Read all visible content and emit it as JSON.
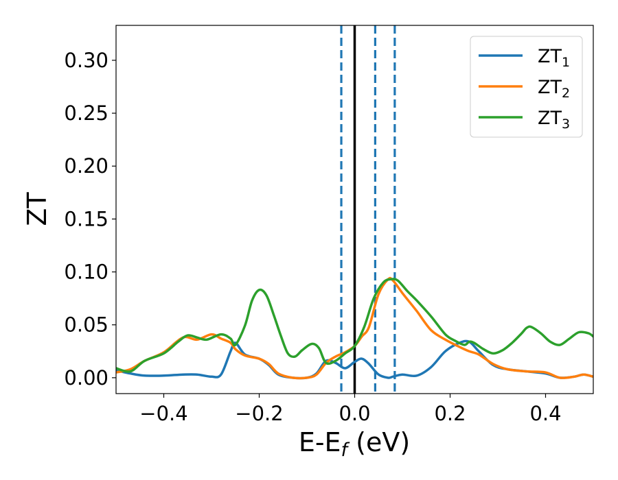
{
  "chart_data": {
    "type": "line",
    "xlabel": "E-E",
    "xlabel_sub": "f",
    "xlabel_unit": " (eV)",
    "ylabel": "ZT",
    "xlim": [
      -0.5,
      0.5
    ],
    "ylim": [
      -0.015,
      0.333
    ],
    "xticks": [
      -0.4,
      -0.2,
      0.0,
      0.2,
      0.4
    ],
    "xtick_labels": [
      "−0.4",
      "−0.2",
      "0.0",
      "0.2",
      "0.4"
    ],
    "yticks": [
      0.0,
      0.05,
      0.1,
      0.15,
      0.2,
      0.25,
      0.3
    ],
    "ytick_labels": [
      "0.00",
      "0.05",
      "0.10",
      "0.15",
      "0.20",
      "0.25",
      "0.30"
    ],
    "grid": false,
    "legend_position": "top-right",
    "series": [
      {
        "name": "ZT",
        "name_sub": "1",
        "color": "#1f77b4",
        "x": [
          -0.5,
          -0.47,
          -0.44,
          -0.4,
          -0.36,
          -0.33,
          -0.3,
          -0.28,
          -0.26,
          -0.25,
          -0.23,
          -0.2,
          -0.18,
          -0.16,
          -0.13,
          -0.1,
          -0.08,
          -0.06,
          -0.04,
          -0.02,
          0.0,
          0.015,
          0.03,
          0.05,
          0.07,
          0.08,
          0.1,
          0.13,
          0.16,
          0.19,
          0.22,
          0.24,
          0.26,
          0.29,
          0.32,
          0.36,
          0.4,
          0.43,
          0.46,
          0.48,
          0.5
        ],
        "y": [
          0.007,
          0.004,
          0.002,
          0.002,
          0.003,
          0.003,
          0.001,
          0.003,
          0.025,
          0.033,
          0.022,
          0.018,
          0.012,
          0.003,
          0.0,
          0.0,
          0.004,
          0.016,
          0.014,
          0.009,
          0.015,
          0.018,
          0.013,
          0.003,
          0.0,
          0.001,
          0.003,
          0.002,
          0.01,
          0.025,
          0.033,
          0.034,
          0.025,
          0.012,
          0.008,
          0.006,
          0.004,
          0.0,
          0.001,
          0.003,
          0.001
        ]
      },
      {
        "name": "ZT",
        "name_sub": "2",
        "color": "#ff7f0e",
        "x": [
          -0.5,
          -0.47,
          -0.44,
          -0.4,
          -0.36,
          -0.33,
          -0.3,
          -0.28,
          -0.26,
          -0.25,
          -0.23,
          -0.2,
          -0.18,
          -0.16,
          -0.13,
          -0.1,
          -0.08,
          -0.06,
          -0.04,
          -0.02,
          0.0,
          0.015,
          0.03,
          0.05,
          0.07,
          0.08,
          0.1,
          0.13,
          0.16,
          0.19,
          0.22,
          0.24,
          0.26,
          0.29,
          0.32,
          0.36,
          0.4,
          0.43,
          0.46,
          0.48,
          0.5
        ],
        "y": [
          0.005,
          0.008,
          0.016,
          0.024,
          0.038,
          0.036,
          0.041,
          0.037,
          0.033,
          0.027,
          0.021,
          0.018,
          0.013,
          0.004,
          0.0,
          0.0,
          0.003,
          0.014,
          0.02,
          0.024,
          0.03,
          0.039,
          0.048,
          0.079,
          0.093,
          0.092,
          0.08,
          0.063,
          0.045,
          0.036,
          0.029,
          0.025,
          0.022,
          0.013,
          0.008,
          0.006,
          0.005,
          0.0,
          0.001,
          0.003,
          0.001
        ]
      },
      {
        "name": "ZT",
        "name_sub": "3",
        "color": "#2ca02c",
        "x": [
          -0.5,
          -0.47,
          -0.44,
          -0.4,
          -0.37,
          -0.35,
          -0.33,
          -0.31,
          -0.28,
          -0.26,
          -0.25,
          -0.23,
          -0.215,
          -0.2,
          -0.185,
          -0.17,
          -0.155,
          -0.14,
          -0.125,
          -0.11,
          -0.09,
          -0.075,
          -0.06,
          -0.04,
          -0.02,
          0.0,
          0.02,
          0.04,
          0.06,
          0.075,
          0.09,
          0.11,
          0.13,
          0.16,
          0.19,
          0.21,
          0.23,
          0.24,
          0.25,
          0.27,
          0.29,
          0.31,
          0.33,
          0.35,
          0.36,
          0.37,
          0.39,
          0.41,
          0.43,
          0.45,
          0.47,
          0.49,
          0.5
        ],
        "y": [
          0.009,
          0.006,
          0.016,
          0.023,
          0.034,
          0.04,
          0.038,
          0.036,
          0.041,
          0.037,
          0.031,
          0.049,
          0.073,
          0.083,
          0.078,
          0.06,
          0.04,
          0.023,
          0.02,
          0.026,
          0.032,
          0.028,
          0.014,
          0.016,
          0.023,
          0.03,
          0.048,
          0.075,
          0.09,
          0.093,
          0.092,
          0.082,
          0.073,
          0.058,
          0.041,
          0.035,
          0.031,
          0.034,
          0.033,
          0.027,
          0.023,
          0.026,
          0.033,
          0.042,
          0.047,
          0.048,
          0.042,
          0.034,
          0.031,
          0.037,
          0.043,
          0.042,
          0.039
        ]
      }
    ],
    "vlines": [
      {
        "x": 0.0,
        "color": "#000000",
        "style": "solid"
      },
      {
        "x": -0.028,
        "color": "#1f77b4",
        "style": "dashed"
      },
      {
        "x": 0.043,
        "color": "#1f77b4",
        "style": "dashed"
      },
      {
        "x": 0.084,
        "color": "#1f77b4",
        "style": "dashed"
      }
    ]
  }
}
